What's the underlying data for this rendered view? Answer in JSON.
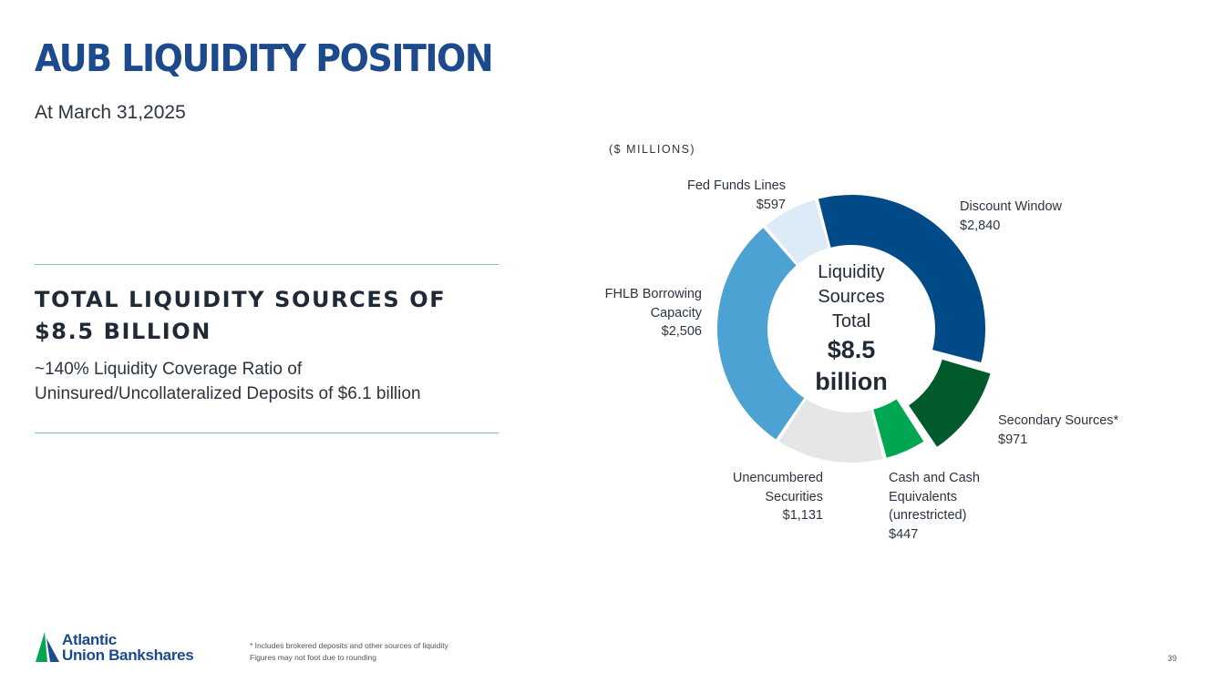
{
  "page": {
    "title": "AUB LIQUIDITY POSITION",
    "subtitle": "At March 31,2025",
    "headline": "TOTAL LIQUIDITY SOURCES OF $8.5 BILLION",
    "body": "~140% Liquidity Coverage Ratio of Uninsured/Uncollateralized Deposits of $6.1 billion",
    "footnote_1": "* Includes brokered deposits and other sources of liquidity",
    "footnote_2": "Figures may not foot due to rounding",
    "page_number": "39",
    "logo_line_1": "Atlantic",
    "logo_line_2": "Union Bankshares"
  },
  "chart_data": {
    "type": "pie",
    "variant": "donut",
    "units_label": "($ MILLIONS)",
    "center_label": [
      "Liquidity",
      "Sources",
      "Total"
    ],
    "center_value": [
      "$8.5",
      "billion"
    ],
    "slices": [
      {
        "label": [
          "Discount Window"
        ],
        "value": 2840,
        "value_text": "$2,840",
        "color": "#004a87",
        "exploded": false
      },
      {
        "label": [
          "Secondary Sources*"
        ],
        "value": 971,
        "value_text": "$971",
        "color": "#005a2c",
        "exploded": true
      },
      {
        "label": [
          "Cash and Cash",
          "Equivalents",
          "(unrestricted)"
        ],
        "value": 447,
        "value_text": "$447",
        "color": "#00a651",
        "exploded": false
      },
      {
        "label": [
          "Unencumbered",
          "Securities"
        ],
        "value": 1131,
        "value_text": "$1,131",
        "color": "#e4e6e8",
        "exploded": false
      },
      {
        "label": [
          "FHLB Borrowing",
          "Capacity"
        ],
        "value": 2506,
        "value_text": "$2,506",
        "color": "#4da2d4",
        "exploded": false
      },
      {
        "label": [
          "Fed Funds Lines"
        ],
        "value": 597,
        "value_text": "$597",
        "color": "#ddebf6",
        "exploded": false
      }
    ]
  },
  "colors": {
    "title": "#1c4a8c",
    "divider": "#7fc8a6",
    "logo_green": "#00a651",
    "logo_blue": "#1c4a8c"
  }
}
